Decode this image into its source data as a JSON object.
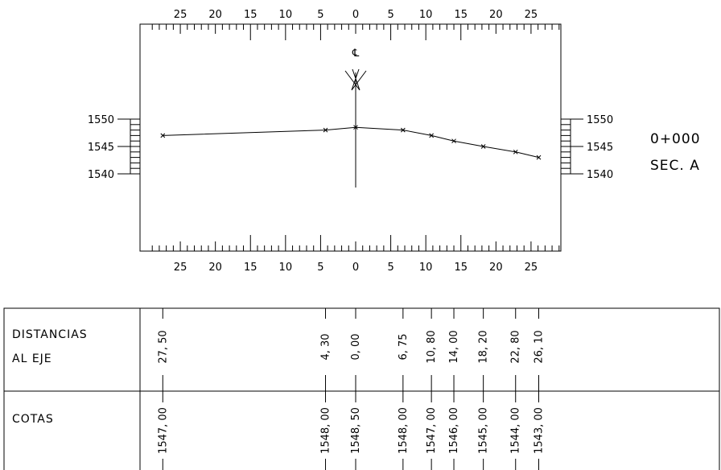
{
  "section": {
    "station": "0+000",
    "label": "SEC. A"
  },
  "centerline_symbol": "℄",
  "chart_data": {
    "type": "line",
    "x_ticks": [
      25,
      20,
      15,
      10,
      5,
      0,
      5,
      10,
      15,
      20,
      25
    ],
    "y_ticks": [
      1550,
      1545,
      1540
    ],
    "x": [
      -27.5,
      -4.3,
      0.0,
      6.75,
      10.8,
      14.0,
      18.2,
      22.8,
      26.1
    ],
    "y": [
      1547.0,
      1548.0,
      1548.5,
      1548.0,
      1547.0,
      1546.0,
      1545.0,
      1544.0,
      1543.0
    ],
    "xlim": [
      -30,
      30
    ],
    "ylim": [
      1530,
      1564
    ],
    "grid": false
  },
  "table": {
    "row1_label_line1": "DISTANCIAS",
    "row1_label_line2": "AL EJE",
    "row2_label": "COTAS",
    "distances": [
      "27, 50",
      "4, 30",
      "0, 00",
      "6, 75",
      "10, 80",
      "14, 00",
      "18, 20",
      "22, 80",
      "26, 10"
    ],
    "elevations": [
      "1547, 00",
      "1548, 00",
      "1548, 50",
      "1548, 00",
      "1547, 00",
      "1546, 00",
      "1545, 00",
      "1544, 00",
      "1543, 00"
    ]
  }
}
